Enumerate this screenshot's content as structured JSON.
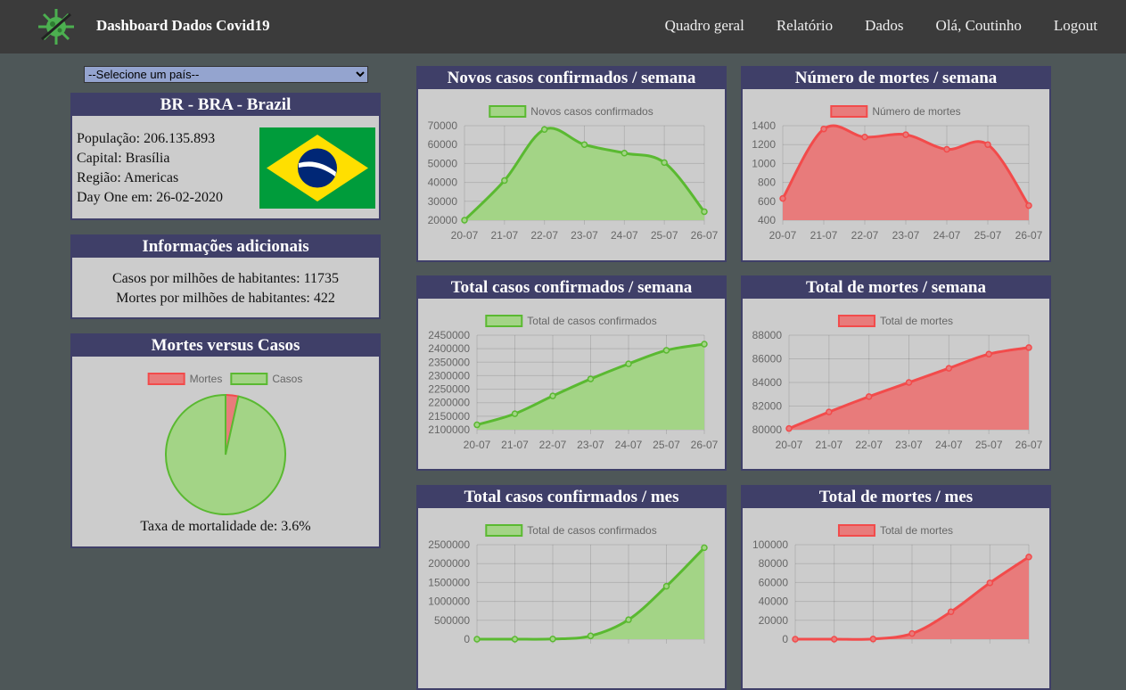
{
  "header": {
    "title": "Dashboard Dados Covid19",
    "nav": [
      "Quadro geral",
      "Relatório",
      "Dados",
      "Olá, Coutinho",
      "Logout"
    ]
  },
  "country_select": "--Selecione um país--",
  "country": {
    "title": "BR - BRA - Brazil",
    "lines": [
      "População: 206.135.893",
      "Capital: Brasília",
      "Região: Americas",
      "Day One em: 26-02-2020"
    ]
  },
  "info": {
    "title": "Informações adicionais",
    "lines": [
      "Casos por milhões de habitantes: 11735",
      "Mortes por milhões de habitantes: 422"
    ]
  },
  "chart_data": [
    {
      "type": "pie",
      "title": "Mortes versus Casos",
      "categories": [
        "Mortes",
        "Casos"
      ],
      "values": [
        87000,
        2420000
      ],
      "colors": [
        "#e87b7b",
        "#a3d486"
      ],
      "line_colors": [
        "#f24b4b",
        "#5ab931"
      ],
      "caption": "Taxa de mortalidade de: 3.6%"
    },
    {
      "type": "line",
      "title": "Novos casos confirmados / semana",
      "categories": [
        "20-07",
        "21-07",
        "22-07",
        "23-07",
        "24-07",
        "25-07",
        "26-07"
      ],
      "series": [
        {
          "name": "Novos casos confirmados",
          "color": "#5ab931",
          "fill": "#a3d486",
          "values": [
            20000,
            41000,
            68000,
            60000,
            55500,
            50500,
            24500
          ]
        }
      ],
      "ylim": [
        20000,
        70000
      ],
      "yticks": [
        20000,
        30000,
        40000,
        50000,
        60000,
        70000
      ],
      "grid": true
    },
    {
      "type": "line",
      "title": "Número de mortes / semana",
      "categories": [
        "20-07",
        "21-07",
        "22-07",
        "23-07",
        "24-07",
        "25-07",
        "26-07"
      ],
      "series": [
        {
          "name": "Número de mortes",
          "color": "#f24b4b",
          "fill": "#e87b7b",
          "values": [
            630,
            1365,
            1280,
            1305,
            1150,
            1200,
            555
          ]
        }
      ],
      "ylim": [
        400,
        1400
      ],
      "yticks": [
        400,
        600,
        800,
        1000,
        1200,
        1400
      ],
      "grid": true
    },
    {
      "type": "line",
      "title": "Total casos confirmados / semana",
      "categories": [
        "20-07",
        "21-07",
        "22-07",
        "23-07",
        "24-07",
        "25-07",
        "26-07"
      ],
      "series": [
        {
          "name": "Total de casos confirmados",
          "color": "#5ab931",
          "fill": "#a3d486",
          "values": [
            2118000,
            2159000,
            2225000,
            2288000,
            2344000,
            2394000,
            2417000
          ]
        }
      ],
      "ylim": [
        2100000,
        2450000
      ],
      "yticks": [
        2100000,
        2150000,
        2200000,
        2250000,
        2300000,
        2350000,
        2400000,
        2450000
      ],
      "grid": true
    },
    {
      "type": "line",
      "title": "Total de mortes / semana",
      "categories": [
        "20-07",
        "21-07",
        "22-07",
        "23-07",
        "24-07",
        "25-07",
        "26-07"
      ],
      "series": [
        {
          "name": "Total de mortes",
          "color": "#f24b4b",
          "fill": "#e87b7b",
          "values": [
            80100,
            81500,
            82800,
            84000,
            85200,
            86400,
            86950
          ]
        }
      ],
      "ylim": [
        80000,
        88000
      ],
      "yticks": [
        80000,
        82000,
        84000,
        86000,
        88000
      ],
      "grid": true
    },
    {
      "type": "line",
      "title": "Total casos confirmados / mes",
      "categories": [
        null,
        null,
        null,
        null,
        null,
        null,
        null
      ],
      "series": [
        {
          "name": "Total de casos confirmados",
          "color": "#5ab931",
          "fill": "#a3d486",
          "values": [
            0,
            0,
            6000,
            87000,
            515000,
            1400000,
            2420000
          ]
        }
      ],
      "ylim": [
        0,
        2500000
      ],
      "yticks": [
        0,
        500000,
        1000000,
        1500000,
        2000000,
        2500000
      ],
      "grid": true
    },
    {
      "type": "line",
      "title": "Total de mortes / mes",
      "categories": [
        null,
        null,
        null,
        null,
        null,
        null,
        null
      ],
      "series": [
        {
          "name": "Total de mortes",
          "color": "#f24b4b",
          "fill": "#e87b7b",
          "values": [
            0,
            0,
            200,
            6000,
            29000,
            59600,
            87000
          ]
        }
      ],
      "ylim": [
        0,
        100000
      ],
      "yticks": [
        0,
        20000,
        40000,
        60000,
        80000,
        100000
      ],
      "grid": true
    }
  ]
}
